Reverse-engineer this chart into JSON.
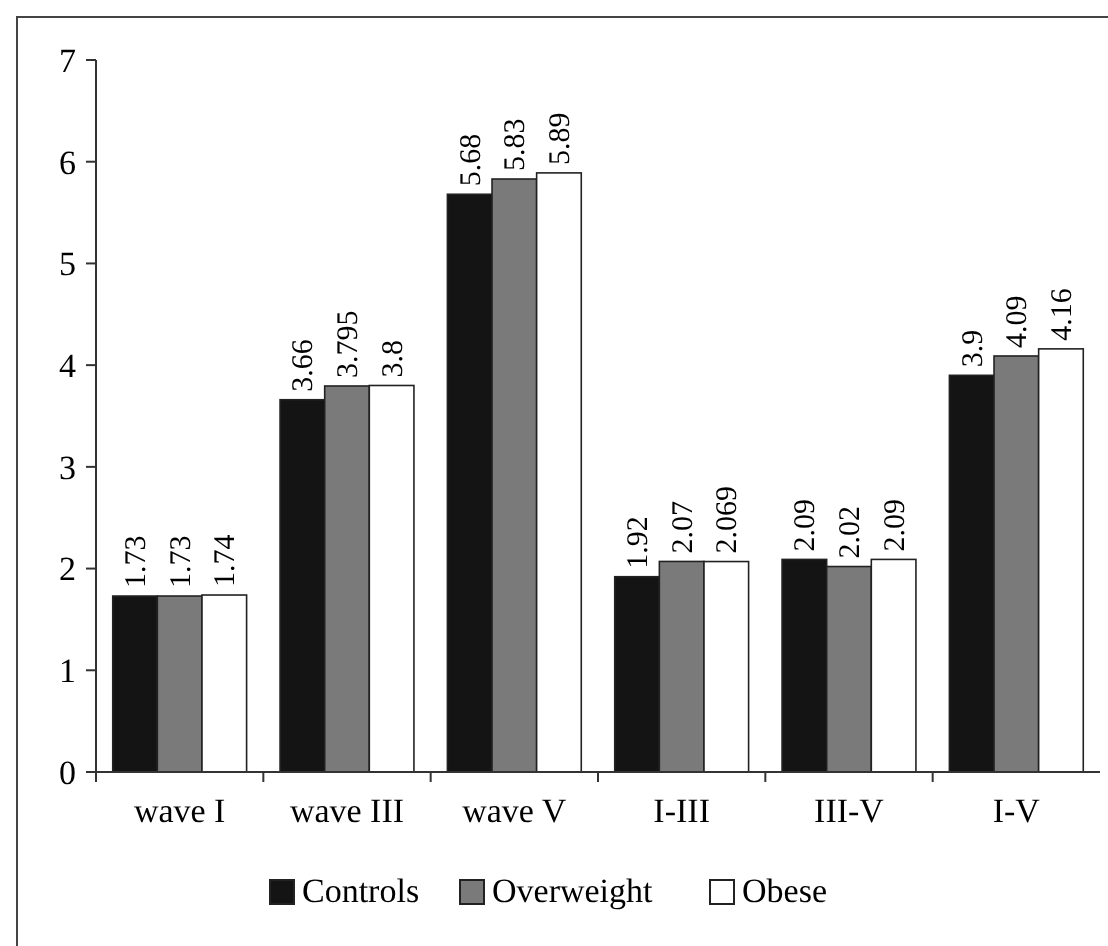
{
  "chart_data": {
    "type": "bar",
    "categories": [
      "wave I",
      "wave III",
      "wave V",
      "I-III",
      "III-V",
      "I-V"
    ],
    "series": [
      {
        "name": "Controls",
        "color": "#141414",
        "values": [
          1.73,
          3.66,
          5.68,
          1.92,
          2.09,
          3.9
        ]
      },
      {
        "name": "Overweight",
        "color": "#7a7a7a",
        "values": [
          1.73,
          3.795,
          5.83,
          2.07,
          2.02,
          4.09
        ]
      },
      {
        "name": "Obese",
        "color": "#ffffff",
        "values": [
          1.74,
          3.8,
          5.89,
          2.069,
          2.09,
          4.16
        ]
      }
    ],
    "ylim": [
      0,
      7
    ],
    "yticks": [
      0,
      1,
      2,
      3,
      4,
      5,
      6,
      7
    ],
    "data_labels": true,
    "legend": "bottom",
    "grid": false
  }
}
